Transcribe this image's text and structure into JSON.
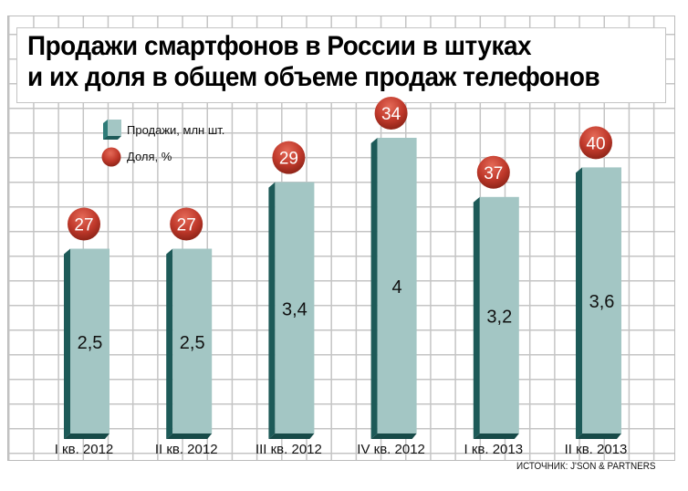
{
  "chart_data": {
    "type": "bar",
    "title": "Продажи смартфонов в России в штуках и их доля в общем объеме продаж телефонов",
    "title_lines": [
      "Продажи смартфонов в России в штуках",
      "и их доля в общем объеме продаж телефонов"
    ],
    "categories": [
      "I кв. 2012",
      "II кв. 2012",
      "III кв. 2012",
      "IV кв. 2012",
      "I кв. 2013",
      "II кв. 2013"
    ],
    "series": [
      {
        "name": "Продажи, млн шт.",
        "values": [
          2.5,
          2.5,
          3.4,
          4,
          3.2,
          3.6
        ],
        "labels": [
          "2,5",
          "2,5",
          "3,4",
          "4",
          "3,2",
          "3,6"
        ],
        "color": "#a3c6c4"
      },
      {
        "name": "Доля, %",
        "values": [
          27,
          27,
          29,
          34,
          37,
          40
        ],
        "labels": [
          "27",
          "27",
          "29",
          "34",
          "37",
          "40"
        ],
        "color": "#c0392b"
      }
    ],
    "legend": [
      "Продажи, млн шт.",
      "Доля, %"
    ],
    "legend_position": "top-left",
    "ylim": [
      0,
      4.5
    ],
    "source": "ИСТОЧНИК: J'SON & PARTNERS"
  }
}
